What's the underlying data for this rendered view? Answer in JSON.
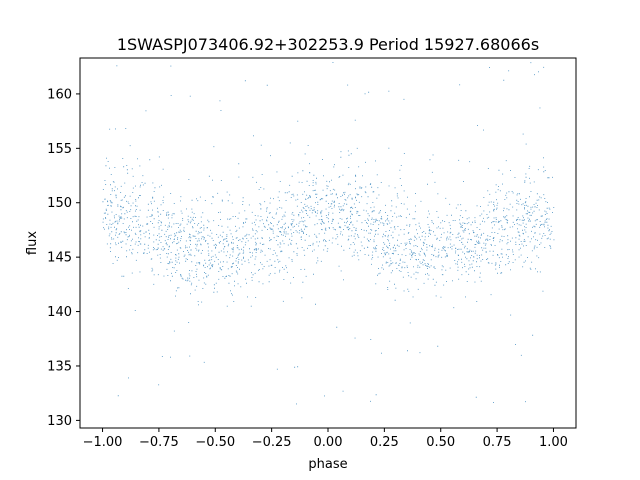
{
  "chart_data": {
    "type": "scatter",
    "title": "1SWASPJ073406.92+302253.9 Period 15927.68066s",
    "xlabel": "phase",
    "ylabel": "flux",
    "xlim": [
      -1.1,
      1.1
    ],
    "ylim": [
      129.3,
      163.3
    ],
    "xticks": [
      -1.0,
      -0.75,
      -0.5,
      -0.25,
      0.0,
      0.25,
      0.5,
      0.75,
      1.0
    ],
    "xtick_labels": [
      "−1.00",
      "−0.75",
      "−0.50",
      "−0.25",
      "0.00",
      "0.25",
      "0.50",
      "0.75",
      "1.00"
    ],
    "yticks": [
      130,
      135,
      140,
      145,
      150,
      155,
      160
    ],
    "ytick_labels": [
      "130",
      "135",
      "140",
      "145",
      "150",
      "155",
      "160"
    ],
    "grid": false,
    "legend": "none",
    "series_color": "#1f77b4",
    "phase_range": [
      -1.0,
      1.0
    ],
    "flux_clip_range": [
      131.0,
      163.0
    ],
    "model": {
      "description": "folded light curve with sinusoidal modulation, minima near phase ±0.5, maxima near phase 0 and ±1",
      "mean_flux": 147.0,
      "amplitude": 1.6,
      "core_scatter": 2.0,
      "outlier_fraction": 0.05
    },
    "binned_mean_flux": [
      {
        "phase": -1.0,
        "flux": 148.6
      },
      {
        "phase": -0.75,
        "flux": 147.2
      },
      {
        "phase": -0.5,
        "flux": 145.5
      },
      {
        "phase": -0.25,
        "flux": 147.0
      },
      {
        "phase": 0.0,
        "flux": 148.5
      },
      {
        "phase": 0.25,
        "flux": 147.1
      },
      {
        "phase": 0.5,
        "flux": 145.5
      },
      {
        "phase": 0.75,
        "flux": 147.0
      },
      {
        "phase": 1.0,
        "flux": 148.6
      }
    ]
  }
}
